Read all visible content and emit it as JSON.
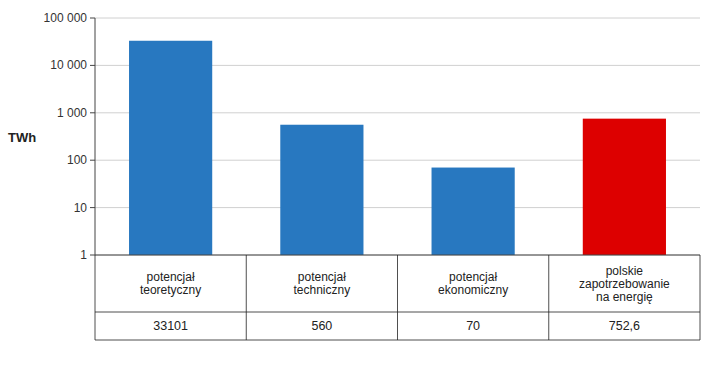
{
  "chart_data": {
    "type": "bar",
    "categories": [
      "potencjał\nteoretyczny",
      "potencjał\ntechniczny",
      "potencjał\nekonomiczny",
      "polskie\nzapotrzebowanie\nna energię"
    ],
    "values": [
      33101,
      560,
      70,
      752.6
    ],
    "value_labels": [
      "33101",
      "560",
      "70",
      "752,6"
    ],
    "data_labels": true,
    "colors": [
      "#2878C0",
      "#2878C0",
      "#2878C0",
      "#DD0000"
    ],
    "y_label": "TWh",
    "log": "y",
    "ylim": [
      1,
      100000
    ],
    "yticks": [
      1,
      10,
      100,
      {
        "value": 1000,
        "label": "1 000"
      },
      {
        "value": 10000,
        "label": "10 000"
      },
      {
        "value": 100000,
        "label": "100 000"
      }
    ],
    "grid": true
  }
}
